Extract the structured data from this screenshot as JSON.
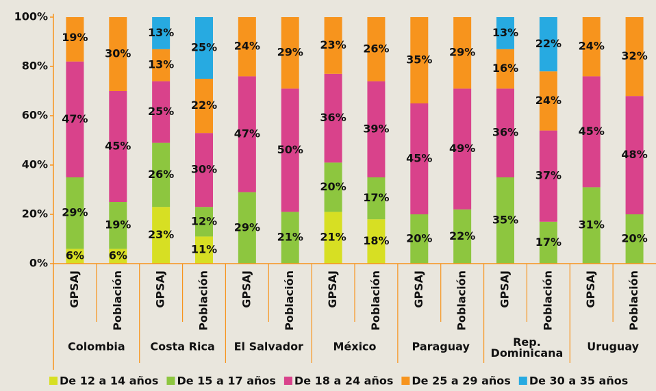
{
  "chart_data": {
    "type": "stacked_bar",
    "categories": [
      "GPSAJ",
      "Población",
      "GPSAJ",
      "Población",
      "GPSAJ",
      "Población",
      "GPSAJ",
      "Población",
      "GPSAJ",
      "Población",
      "GPSAJ",
      "Población",
      "GPSAJ",
      "Población"
    ],
    "groups": [
      "Colombia",
      "Costa Rica",
      "El Salvador",
      "México",
      "Paraguay",
      "Rep. Dominicana",
      "Uruguay"
    ],
    "series": [
      {
        "name": "De 12 a 14 años",
        "color": "#d7df23",
        "values": [
          6,
          6,
          23,
          11,
          null,
          null,
          21,
          18,
          null,
          null,
          null,
          null,
          null,
          null
        ],
        "value_labels": [
          "6%",
          "6%",
          "23%",
          "11%",
          null,
          null,
          "21%",
          "18%",
          null,
          null,
          null,
          null,
          null,
          null
        ]
      },
      {
        "name": "De 15 a 17 años",
        "color": "#8dc63f",
        "values": [
          29,
          19,
          26,
          12,
          29,
          21,
          20,
          17,
          20,
          22,
          35,
          17,
          31,
          20
        ],
        "value_labels": [
          "29%",
          "19%",
          "26%",
          "12%",
          "29%",
          "21%",
          "20%",
          "17%",
          "20%",
          "22%",
          "35%",
          "17%",
          "31%",
          "20%"
        ]
      },
      {
        "name": "De 18 a 24 años",
        "color": "#d9428b",
        "values": [
          47,
          45,
          25,
          30,
          47,
          50,
          36,
          39,
          45,
          49,
          36,
          37,
          45,
          48
        ],
        "value_labels": [
          "47%",
          "45%",
          "25%",
          "30%",
          "47%",
          "50%",
          "36%",
          "39%",
          "45%",
          "49%",
          "36%",
          "37%",
          "45%",
          "48%"
        ]
      },
      {
        "name": "De 25 a 29 años",
        "color": "#f7941d",
        "values": [
          19,
          30,
          13,
          22,
          24,
          29,
          23,
          26,
          35,
          29,
          16,
          24,
          24,
          32
        ],
        "value_labels": [
          "19%",
          "30%",
          "13%",
          "22%",
          "24%",
          "29%",
          "23%",
          "26%",
          "35%",
          "29%",
          "16%",
          "24%",
          "24%",
          "32%"
        ]
      },
      {
        "name": "De 30 a 35 años",
        "color": "#27aae1",
        "values": [
          null,
          null,
          13,
          25,
          null,
          null,
          null,
          null,
          null,
          null,
          13,
          22,
          null,
          null
        ],
        "value_labels": [
          null,
          null,
          "13%",
          "25%",
          null,
          null,
          null,
          null,
          null,
          null,
          "13%",
          "22%",
          null,
          null
        ]
      }
    ],
    "ylim": [
      0,
      100
    ],
    "yticks": [
      {
        "value": 0,
        "label": "0%"
      },
      {
        "value": 20,
        "label": "20%"
      },
      {
        "value": 40,
        "label": "40%"
      },
      {
        "value": 60,
        "label": "60%"
      },
      {
        "value": 80,
        "label": "80%"
      },
      {
        "value": 100,
        "label": "100%"
      }
    ],
    "legend": "bottom"
  }
}
